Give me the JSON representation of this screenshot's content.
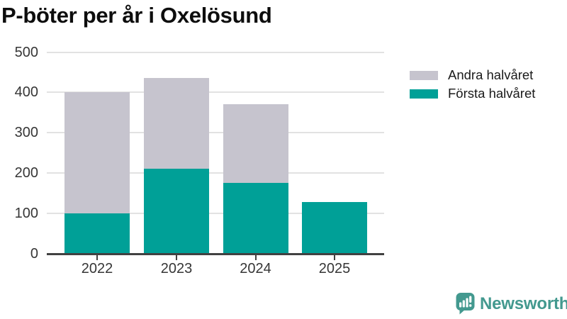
{
  "title": "P-böter per år i Oxelösund",
  "legend": [
    {
      "label": "Andra halvåret",
      "color": "#C6C4CE"
    },
    {
      "label": "Första halvåret",
      "color": "#00A097"
    }
  ],
  "chart_data": {
    "type": "bar",
    "stacked": true,
    "title": "P-böter per år i Oxelösund",
    "categories": [
      "2022",
      "2023",
      "2024",
      "2025"
    ],
    "series": [
      {
        "name": "Första halvåret",
        "key": "forsta-halvaret",
        "color": "#00A097",
        "values": [
          100,
          210,
          175,
          128
        ]
      },
      {
        "name": "Andra halvåret",
        "key": "andra-halvaret",
        "color": "#C6C4CE",
        "values": [
          300,
          225,
          195,
          0
        ]
      }
    ],
    "xlabel": "",
    "ylabel": "",
    "ylim": [
      0,
      500
    ],
    "yticks": [
      0,
      100,
      200,
      300,
      400,
      500
    ],
    "grid": true,
    "legend_position": "top-right"
  },
  "footer": {
    "brand_name": "Newsworthy"
  },
  "colors": {
    "first_half": "#00A097",
    "second_half": "#C6C4CE",
    "brand_teal": "#43998F",
    "title_text": "#0D0D0D",
    "axis_text": "#363636",
    "gridline": "#E2E2E2",
    "axis_line": "#414141",
    "background": "#FFFFFF"
  }
}
